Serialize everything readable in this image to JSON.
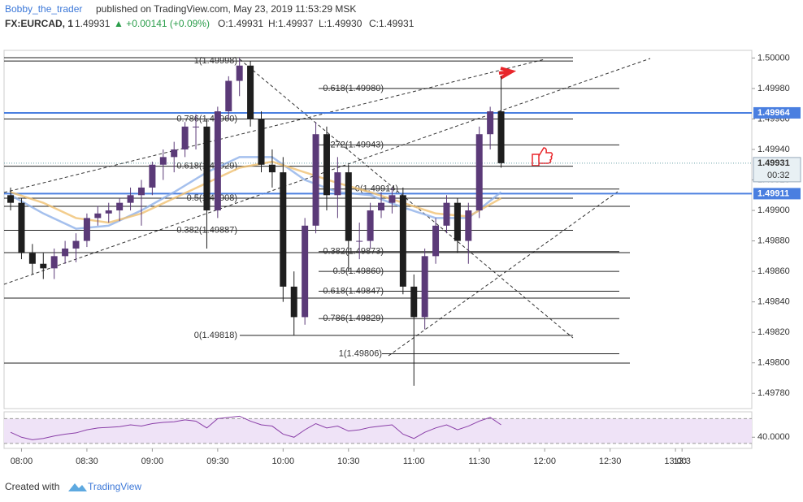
{
  "header": {
    "author": "Bobby_the_trader",
    "published": "published on TradingView.com, May 23, 2019 11:53:29 MSK",
    "symbol": "FX:EURCAD, 1",
    "last": "1.49931",
    "change": "▲ +0.00141 (+0.09%)",
    "ohlc": [
      "O:1.49931",
      "H:1.49937",
      "L:1.49930",
      "C:1.49931"
    ]
  },
  "footer": {
    "created": "Created with",
    "brand": "TradingView"
  },
  "chart_data": {
    "type": "candlestick",
    "x": [
      "07:55",
      "08:00",
      "08:05",
      "08:10",
      "08:15",
      "08:20",
      "08:25",
      "08:30",
      "08:35",
      "08:40",
      "08:45",
      "08:50",
      "08:55",
      "09:00",
      "09:05",
      "09:10",
      "09:15",
      "09:20",
      "09:25",
      "09:30",
      "09:35",
      "09:40",
      "09:45",
      "09:50",
      "09:55",
      "10:00",
      "10:05",
      "10:10",
      "10:15",
      "10:20",
      "10:25",
      "10:30",
      "10:35",
      "10:40",
      "10:45",
      "10:50",
      "10:55",
      "11:00",
      "11:05",
      "11:10",
      "11:15",
      "11:20",
      "11:25",
      "11:30",
      "11:35",
      "11:40"
    ],
    "open": [
      1.4991,
      1.49905,
      1.49872,
      1.49865,
      1.49862,
      1.4987,
      1.49875,
      1.4988,
      1.49895,
      1.49898,
      1.499,
      1.49905,
      1.4991,
      1.49915,
      1.4993,
      1.49935,
      1.4994,
      1.49955,
      1.49955,
      1.499,
      1.49965,
      1.49985,
      1.49995,
      1.4996,
      1.4993,
      1.49925,
      1.4985,
      1.4983,
      1.4989,
      1.4995,
      1.4991,
      1.49925,
      1.4988,
      1.4988,
      1.499,
      1.49905,
      1.4991,
      1.4985,
      1.4983,
      1.4987,
      1.4989,
      1.49905,
      1.4988,
      1.499,
      1.4995,
      1.49965
    ],
    "high": [
      1.49915,
      1.49908,
      1.49878,
      1.49872,
      1.49875,
      1.4988,
      1.49885,
      1.49898,
      1.49903,
      1.49905,
      1.49908,
      1.49915,
      1.4992,
      1.49932,
      1.4994,
      1.49945,
      1.49958,
      1.49963,
      1.4996,
      1.49968,
      1.49988,
      1.5,
      1.49998,
      1.49965,
      1.4994,
      1.49935,
      1.4986,
      1.49895,
      1.49958,
      1.49955,
      1.49935,
      1.4993,
      1.49892,
      1.49905,
      1.49912,
      1.49915,
      1.49915,
      1.49858,
      1.49875,
      1.49895,
      1.4991,
      1.49908,
      1.49905,
      1.49955,
      1.49968,
      1.49988
    ],
    "low": [
      1.499,
      1.49868,
      1.49858,
      1.49855,
      1.49855,
      1.49865,
      1.49866,
      1.49876,
      1.4989,
      1.49892,
      1.49893,
      1.499,
      1.4989,
      1.4991,
      1.4992,
      1.49925,
      1.49935,
      1.4994,
      1.49875,
      1.49895,
      1.4996,
      1.49975,
      1.49955,
      1.49925,
      1.49915,
      1.4984,
      1.49818,
      1.49825,
      1.49885,
      1.499,
      1.49895,
      1.4986,
      1.49868,
      1.49875,
      1.49895,
      1.49898,
      1.49845,
      1.49785,
      1.49822,
      1.49865,
      1.49885,
      1.49872,
      1.49865,
      1.49895,
      1.4994,
      1.49928
    ],
    "close": [
      1.49905,
      1.49872,
      1.49865,
      1.49862,
      1.4987,
      1.49875,
      1.4988,
      1.49895,
      1.49898,
      1.499,
      1.49905,
      1.4991,
      1.49915,
      1.4993,
      1.49935,
      1.4994,
      1.49955,
      1.49955,
      1.499,
      1.49965,
      1.49985,
      1.49995,
      1.4996,
      1.4993,
      1.49925,
      1.4985,
      1.4983,
      1.4989,
      1.4995,
      1.4991,
      1.49925,
      1.4988,
      1.4988,
      1.499,
      1.49905,
      1.4991,
      1.4985,
      1.4983,
      1.4987,
      1.4989,
      1.49905,
      1.4988,
      1.499,
      1.4995,
      1.49965,
      1.49931
    ],
    "up_color": "#5b3a78",
    "down_color": "#1e1e1e",
    "moving_averages": [
      {
        "color": "#8fb0e8",
        "x": [
          "07:55",
          "08:10",
          "08:25",
          "08:40",
          "08:55",
          "09:10",
          "09:25",
          "09:40",
          "09:55",
          "10:10",
          "10:25",
          "10:40",
          "10:55",
          "11:10",
          "11:25",
          "11:40"
        ],
        "values": [
          1.4991,
          1.49898,
          1.49888,
          1.4989,
          1.499,
          1.49912,
          1.49925,
          1.49935,
          1.49935,
          1.4992,
          1.49912,
          1.4991,
          1.49902,
          1.49895,
          1.49895,
          1.49912
        ]
      },
      {
        "color": "#f0c070",
        "x": [
          "07:55",
          "08:10",
          "08:25",
          "08:40",
          "08:55",
          "09:10",
          "09:25",
          "09:40",
          "09:55",
          "10:10",
          "10:25",
          "10:40",
          "10:55",
          "11:10",
          "11:25",
          "11:40"
        ],
        "values": [
          1.49912,
          1.49905,
          1.49895,
          1.49892,
          1.49898,
          1.49908,
          1.49918,
          1.49928,
          1.49932,
          1.49925,
          1.49918,
          1.49912,
          1.49905,
          1.49898,
          1.49896,
          1.49908
        ]
      }
    ],
    "ylim": [
      1.4977,
      1.50005
    ],
    "yticks": [
      {
        "value": 1.4978,
        "label": "1.49780"
      },
      {
        "value": 1.498,
        "label": "1.49800"
      },
      {
        "value": 1.4982,
        "label": "1.49820"
      },
      {
        "value": 1.4984,
        "label": "1.49840"
      },
      {
        "value": 1.4986,
        "label": "1.49860"
      },
      {
        "value": 1.4988,
        "label": "1.49880"
      },
      {
        "value": 1.499,
        "label": "1.49900"
      },
      {
        "value": 1.4992,
        "label": "1.49920"
      },
      {
        "value": 1.4994,
        "label": "1.49940"
      },
      {
        "value": 1.4996,
        "label": "1.49960"
      },
      {
        "value": 1.4998,
        "label": "1.49980"
      },
      {
        "value": 1.5,
        "label": "1.50000"
      }
    ],
    "xlim": [
      "07:52",
      "13:35"
    ],
    "xticks": [
      "08:00",
      "08:30",
      "09:00",
      "09:30",
      "10:00",
      "10:30",
      "11:00",
      "11:30",
      "12:00",
      "12:30",
      "13:00",
      "13:3"
    ],
    "levels": [
      {
        "value": 1.49964,
        "label": "1.49964",
        "color": "#4a7fe0"
      },
      {
        "value": 1.49911,
        "label": "1.49911",
        "color": "#4a7fe0"
      }
    ],
    "current": {
      "value": 1.49931,
      "label": "1.49931",
      "countdown": "00:32"
    },
    "fib_levels": [
      {
        "value": 1.49998,
        "label": "1(1.49998)"
      },
      {
        "value": 1.4998,
        "label": "0.618(1.49980)"
      },
      {
        "value": 1.4996,
        "label": "0.786(1.49960)"
      },
      {
        "value": 1.49943,
        "label": "0.272(1.49943)"
      },
      {
        "value": 1.49929,
        "label": "0.618(1.49929)"
      },
      {
        "value": 1.49914,
        "label": "0(1.49914)"
      },
      {
        "value": 1.49908,
        "label": "0.5(1.49908)"
      },
      {
        "value": 1.49887,
        "label": "0.382(1.49887)"
      },
      {
        "value": 1.49873,
        "label": "0.382(1.49873)"
      },
      {
        "value": 1.4986,
        "label": "0.5(1.49860)"
      },
      {
        "value": 1.49847,
        "label": "0.618(1.49847)"
      },
      {
        "value": 1.49829,
        "label": "0.786(1.49829)"
      },
      {
        "value": 1.49818,
        "label": "0(1.49818)"
      },
      {
        "value": 1.49806,
        "label": "1(1.49806)"
      }
    ],
    "rsi": {
      "color": "#8a3fa8",
      "values": [
        48,
        40,
        36,
        38,
        42,
        45,
        47,
        52,
        55,
        56,
        57,
        60,
        58,
        62,
        64,
        65,
        68,
        66,
        55,
        70,
        72,
        74,
        66,
        60,
        58,
        45,
        40,
        52,
        62,
        55,
        58,
        50,
        52,
        56,
        58,
        60,
        45,
        38,
        48,
        55,
        60,
        52,
        58,
        66,
        72,
        60
      ],
      "ylim": [
        22,
        81
      ],
      "yticks": [
        {
          "value": 40,
          "label": "40.0000"
        }
      ],
      "bands": [
        30,
        70
      ]
    }
  }
}
